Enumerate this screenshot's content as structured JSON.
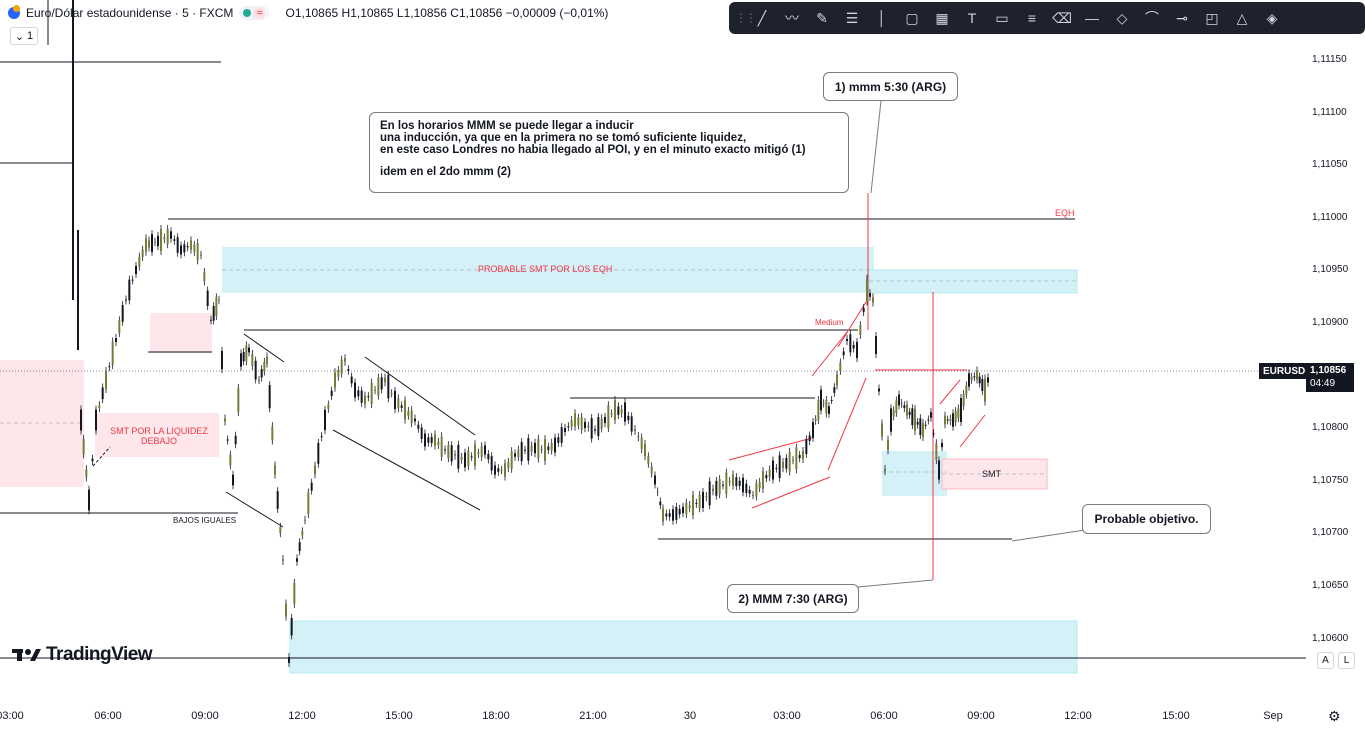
{
  "header": {
    "symbol_title": "Euro/Dólar estadounidense · 5 · FXCM",
    "sync_symbol": "≈",
    "ohlc": "O1,10865 H1,10865 L1,10856 C1,10856 −0,00009 (−0,01%)",
    "interval_count": "1"
  },
  "toolbar": {
    "tools": [
      "trend-line-icon",
      "path-icon",
      "brush-icon",
      "fib-icon",
      "vertical-line-icon",
      "rectangle-icon",
      "grid-icon",
      "text-icon",
      "comment-icon",
      "pattern-icon",
      "eraser-icon",
      "horizontal-line-icon",
      "diamond-icon",
      "curve-icon",
      "ray-icon",
      "callout-icon",
      "triangle-icon",
      "fill-icon"
    ]
  },
  "price_axis": {
    "ticks": [
      "1,11150",
      "1,11100",
      "1,11050",
      "1,11000",
      "1,10950",
      "1,10900",
      "1,10850",
      "1,10800",
      "1,10750",
      "1,10700",
      "1,10650",
      "1,10600"
    ],
    "symbol_label": "EURUSD",
    "current_price": "1,10856",
    "countdown": "04:49"
  },
  "time_axis": {
    "ticks": [
      "03:00",
      "06:00",
      "09:00",
      "12:00",
      "15:00",
      "18:00",
      "21:00",
      "30",
      "03:00",
      "06:00",
      "09:00",
      "12:00",
      "15:00",
      "Sep"
    ]
  },
  "annotations": {
    "note_line1": "En los horarios MMM se puede llegar a inducir",
    "note_line2": "una inducción, ya que en la primera no se tomó suficiente liquidez,",
    "note_line3": "en este caso Londres no habia llegado al POI, y en el minuto exacto mitigó (1)",
    "note_line4": "idem en el 2do mmm (2)",
    "callout1": "1) mmm 5:30 (ARG)",
    "callout2": "2) MMM 7:30 (ARG)",
    "callout3": "Probable objetivo.",
    "eqh": "EQH",
    "smt_eqh": "PROBABLE SMT POR LOS EQH",
    "medium": "Medium",
    "smt_liq_1": "SMT POR LA LIQUIDEZ",
    "smt_liq_2": "DEBAJO",
    "bajos": "BAJOS IGUALES",
    "smt": "SMT"
  },
  "footer": {
    "brand": "TradingView",
    "auto_label": "A",
    "log_label": "L"
  },
  "colors": {
    "up_candle": "#787b3b",
    "down_candle": "#131722",
    "accent_red": "#f23645",
    "zone_blue": "#b2ebf2",
    "zone_pink": "#fce4e8"
  }
}
